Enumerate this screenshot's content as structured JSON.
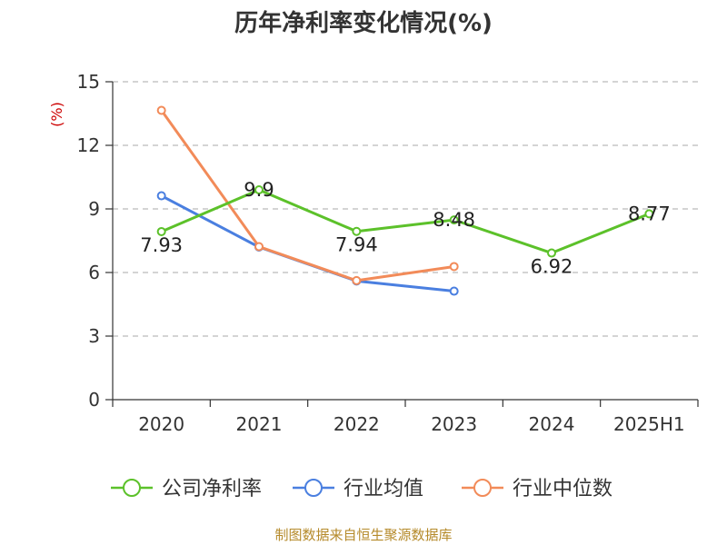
{
  "chart_data": {
    "type": "line",
    "title": "历年净利率变化情况(%)",
    "ylabel": "(%)",
    "xlabel": "",
    "categories": [
      "2020",
      "2021",
      "2022",
      "2023",
      "2024",
      "2025H1"
    ],
    "ylim": [
      0,
      15
    ],
    "yticks": [
      0,
      3,
      6,
      9,
      12,
      15
    ],
    "grid": true,
    "legend_position": "bottom",
    "series": [
      {
        "name": "公司净利率",
        "color": "#5cc12a",
        "values": [
          7.93,
          9.9,
          7.94,
          8.48,
          6.92,
          8.77
        ],
        "labels": [
          "7.93",
          "9.9",
          "7.94",
          "8.48",
          "6.92",
          "8.77"
        ]
      },
      {
        "name": "行业均值",
        "color": "#4a7fe0",
        "values": [
          9.62,
          7.2,
          5.6,
          5.12,
          null,
          null
        ]
      },
      {
        "name": "行业中位数",
        "color": "#f28b59",
        "values": [
          13.65,
          7.22,
          5.62,
          6.28,
          null,
          null
        ]
      }
    ]
  },
  "source": "制图数据来自恒生聚源数据库"
}
